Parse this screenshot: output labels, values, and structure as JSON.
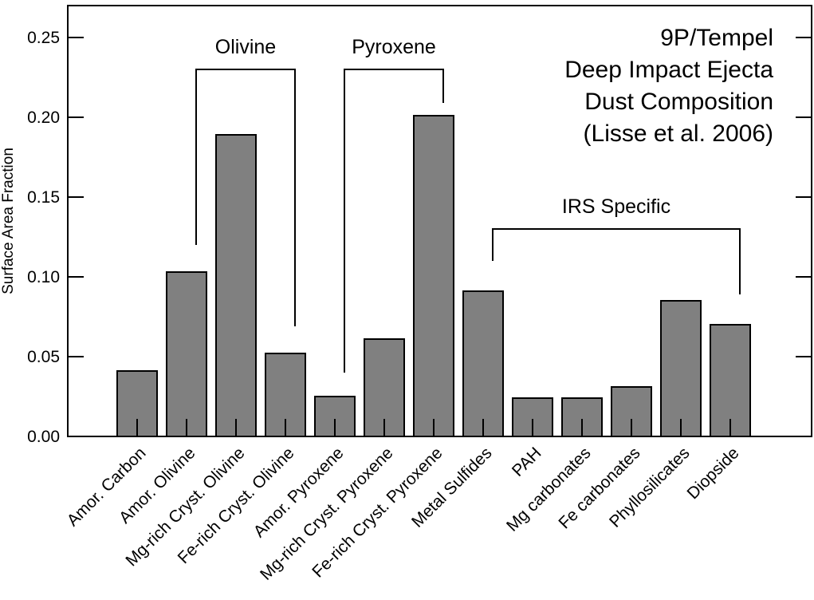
{
  "chart_data": {
    "type": "bar",
    "title_lines": [
      "9P/Tempel",
      "Deep Impact Ejecta",
      "Dust Composition",
      "(Lisse et al. 2006)"
    ],
    "ylabel": "Surface Area Fraction",
    "xlabel": "",
    "ylim": [
      0,
      0.27
    ],
    "yticks": [
      "0.00",
      "0.05",
      "0.10",
      "0.15",
      "0.20",
      "0.25"
    ],
    "categories": [
      "Amor. Carbon",
      "Amor. Olivine",
      "Mg-rich Cryst. Olivine",
      "Fe-rich Cryst. Olivine",
      "Amor. Pyroxene",
      "Mg-rich Cryst. Pyroxene",
      "Fe-rich Cryst. Pyroxene",
      "Metal Sulfides",
      "PAH",
      "Mg carbonates",
      "Fe carbonates",
      "Phyllosilicates",
      "Diopside"
    ],
    "values": [
      0.041,
      0.103,
      0.189,
      0.052,
      0.025,
      0.061,
      0.201,
      0.091,
      0.024,
      0.024,
      0.031,
      0.085,
      0.07
    ],
    "bar_color": "#808080",
    "grid": false,
    "groups": [
      {
        "label": "Olivine",
        "from": 1,
        "to": 3,
        "level": 0.23,
        "left_end": 0.12,
        "right_end": 0.069
      },
      {
        "label": "Pyroxene",
        "from": 4,
        "to": 6,
        "level": 0.23,
        "left_end": 0.04,
        "right_end": 0.209
      },
      {
        "label": "IRS Specific",
        "from": 7,
        "to": 12,
        "level": 0.13,
        "left_end": 0.11,
        "right_end": 0.089
      }
    ]
  }
}
